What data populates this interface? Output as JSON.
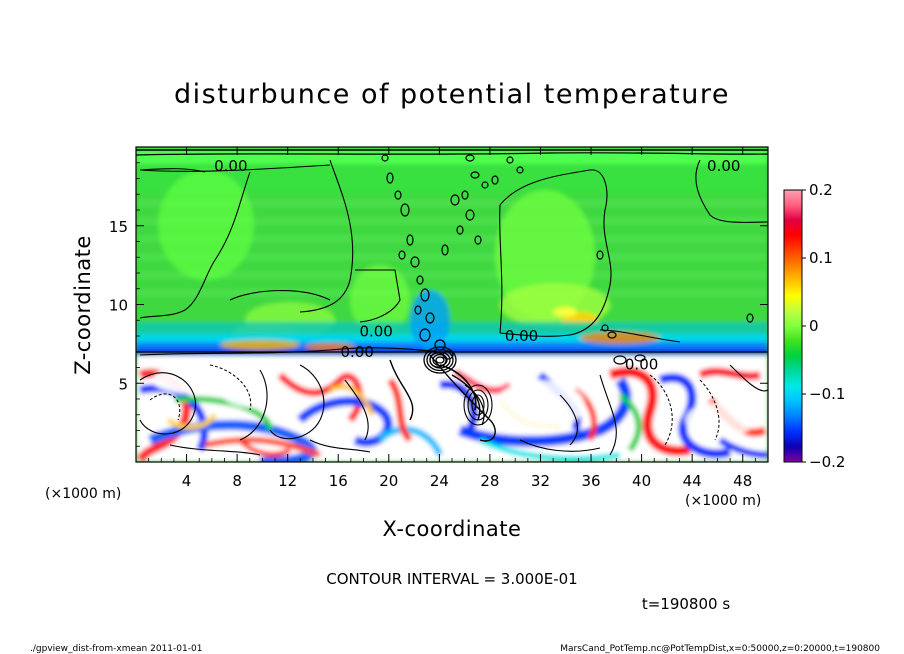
{
  "chart_data": {
    "type": "heatmap",
    "title": "disturbunce of potential temperature",
    "xlabel": "X-coordinate",
    "ylabel": "Z-coordinate",
    "x_unit": "(×1000 m)",
    "z_unit": "(×1000 m)",
    "xlim": [
      0,
      50
    ],
    "ylim": [
      0,
      20
    ],
    "x_ticks": [
      4,
      8,
      12,
      16,
      20,
      24,
      28,
      32,
      36,
      40,
      44,
      48
    ],
    "y_ticks": [
      5,
      10,
      15
    ],
    "colorbar": {
      "range": [
        -0.2,
        0.2
      ],
      "ticks": [
        {
          "value": 0.2,
          "label": "0.2"
        },
        {
          "value": 0.1,
          "label": "0.1"
        },
        {
          "value": 0,
          "label": "0"
        },
        {
          "value": -0.1,
          "label": "−0.1"
        },
        {
          "value": -0.2,
          "label": "−0.2"
        }
      ],
      "colors": [
        "#8000a0",
        "#1000b0",
        "#0030ff",
        "#0080ff",
        "#00c0ff",
        "#00e8e8",
        "#00d8a0",
        "#00d040",
        "#40e020",
        "#80ff40",
        "#c0ff40",
        "#ffff00",
        "#ffc000",
        "#ff8000",
        "#ff4000",
        "#ff0000",
        "#e00040",
        "#ff6080",
        "#ffa0b0"
      ]
    },
    "contour_labels": [
      {
        "text": "0.00",
        "x": 7.5,
        "z": 18.8
      },
      {
        "text": "0.00",
        "x": 46.5,
        "z": 18.8
      },
      {
        "text": "0.00",
        "x": 19,
        "z": 8.3
      },
      {
        "text": "0.00",
        "x": 30.5,
        "z": 8.0
      },
      {
        "text": "0.00",
        "x": 17.5,
        "z": 7.0
      },
      {
        "text": "0.00",
        "x": 40,
        "z": 6.2
      }
    ],
    "contour_interval": "CONTOUR INTERVAL = 3.000E-01",
    "time_label": "t=190800 s"
  },
  "footer": {
    "left": "./gpview_dist-from-xmean  2011-01-01",
    "right": "MarsCand_PotTemp.nc@PotTempDist,x=0:50000,z=0:20000,t=190800"
  }
}
